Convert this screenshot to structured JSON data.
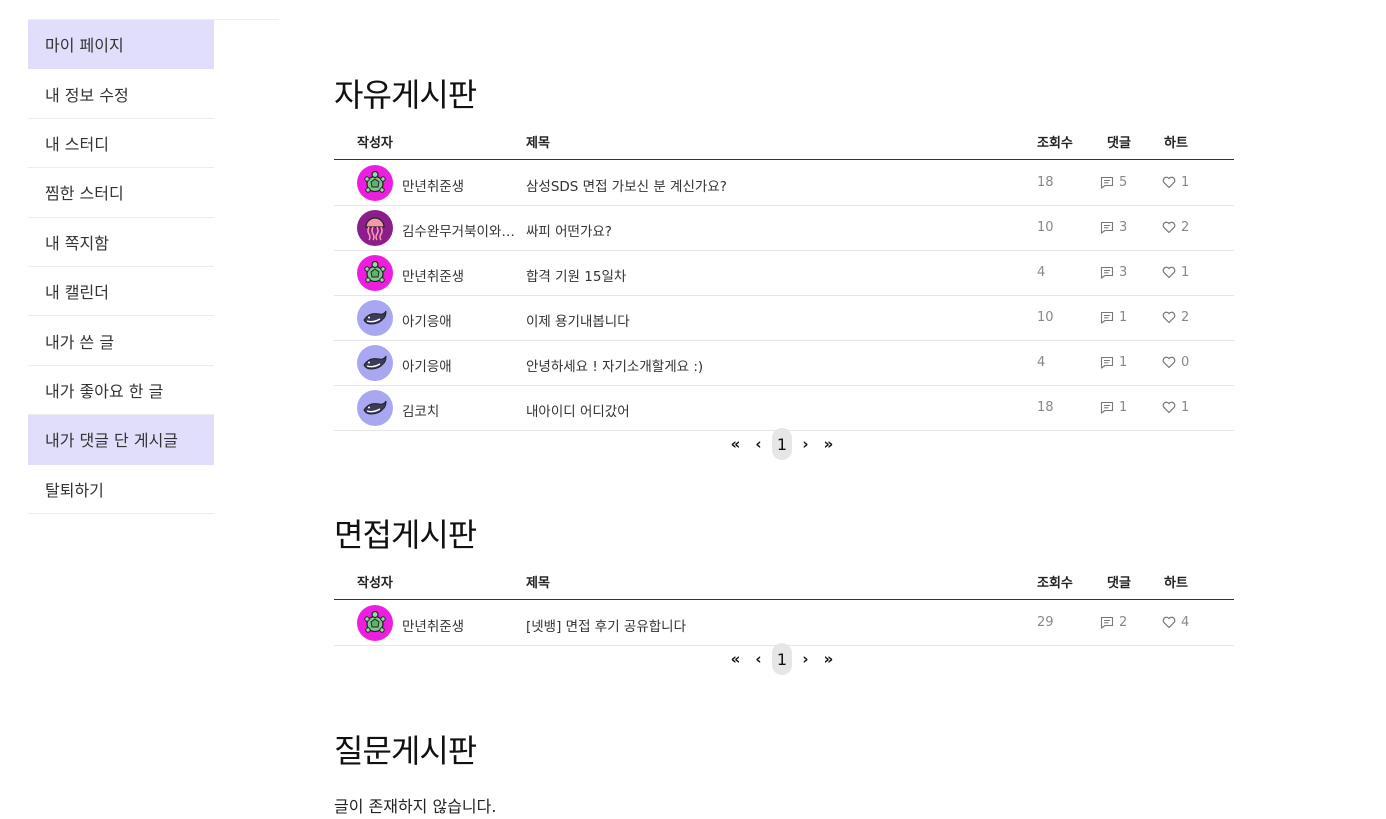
{
  "sidebar": {
    "items": [
      {
        "label": "마이 페이지",
        "highlighted": true
      },
      {
        "label": "내 정보 수정",
        "highlighted": false
      },
      {
        "label": "내 스터디",
        "highlighted": false
      },
      {
        "label": "찜한 스터디",
        "highlighted": false
      },
      {
        "label": "내 쪽지함",
        "highlighted": false
      },
      {
        "label": "내 캘린더",
        "highlighted": false
      },
      {
        "label": "내가 쓴 글",
        "highlighted": false
      },
      {
        "label": "내가 좋아요 한 글",
        "highlighted": false
      },
      {
        "label": "내가 댓글 단 게시글",
        "highlighted": true
      },
      {
        "label": "탈퇴하기",
        "highlighted": false
      }
    ]
  },
  "columns": {
    "author": "작성자",
    "title": "제목",
    "views": "조회수",
    "comments": "댓글",
    "hearts": "하트"
  },
  "pager": {
    "first": "«",
    "prev": "‹",
    "current": "1",
    "next": "›",
    "last": "»"
  },
  "boards": {
    "free": {
      "title": "자유게시판",
      "rows": [
        {
          "avatar": "turtle-avatar",
          "author": "만년취준생",
          "title": "삼성SDS 면접 가보신 분 계신가요?",
          "views": "18",
          "comments": "5",
          "hearts": "1"
        },
        {
          "avatar": "jellyfish-avatar",
          "author": "김수완무거북이와두루미",
          "title": "싸피 어떤가요?",
          "views": "10",
          "comments": "3",
          "hearts": "2"
        },
        {
          "avatar": "turtle-avatar",
          "author": "만년취준생",
          "title": "합격 기원 15일차",
          "views": "4",
          "comments": "3",
          "hearts": "1"
        },
        {
          "avatar": "whale-avatar",
          "author": "아기응애",
          "title": "이제 용기내봅니다",
          "views": "10",
          "comments": "1",
          "hearts": "2"
        },
        {
          "avatar": "whale-avatar",
          "author": "아기응애",
          "title": "안녕하세요 ! 자기소개할게요 :)",
          "views": "4",
          "comments": "1",
          "hearts": "0"
        },
        {
          "avatar": "whale-avatar",
          "author": "김코치",
          "title": "내아이디 어디갔어",
          "views": "18",
          "comments": "1",
          "hearts": "1"
        }
      ]
    },
    "interview": {
      "title": "면접게시판",
      "rows": [
        {
          "avatar": "turtle-avatar",
          "author": "만년취준생",
          "title": "[넷뱅] 면접 후기 공유합니다",
          "views": "29",
          "comments": "2",
          "hearts": "4"
        }
      ]
    },
    "question": {
      "title": "질문게시판",
      "empty": "글이 존재하지 않습니다."
    }
  },
  "colors": {
    "sidebar_highlight": "#e0defa",
    "turtle_bg": "#ee1ee0",
    "jellyfish_bg": "#8c1e8c",
    "whale_bg": "#a9a6f2"
  }
}
